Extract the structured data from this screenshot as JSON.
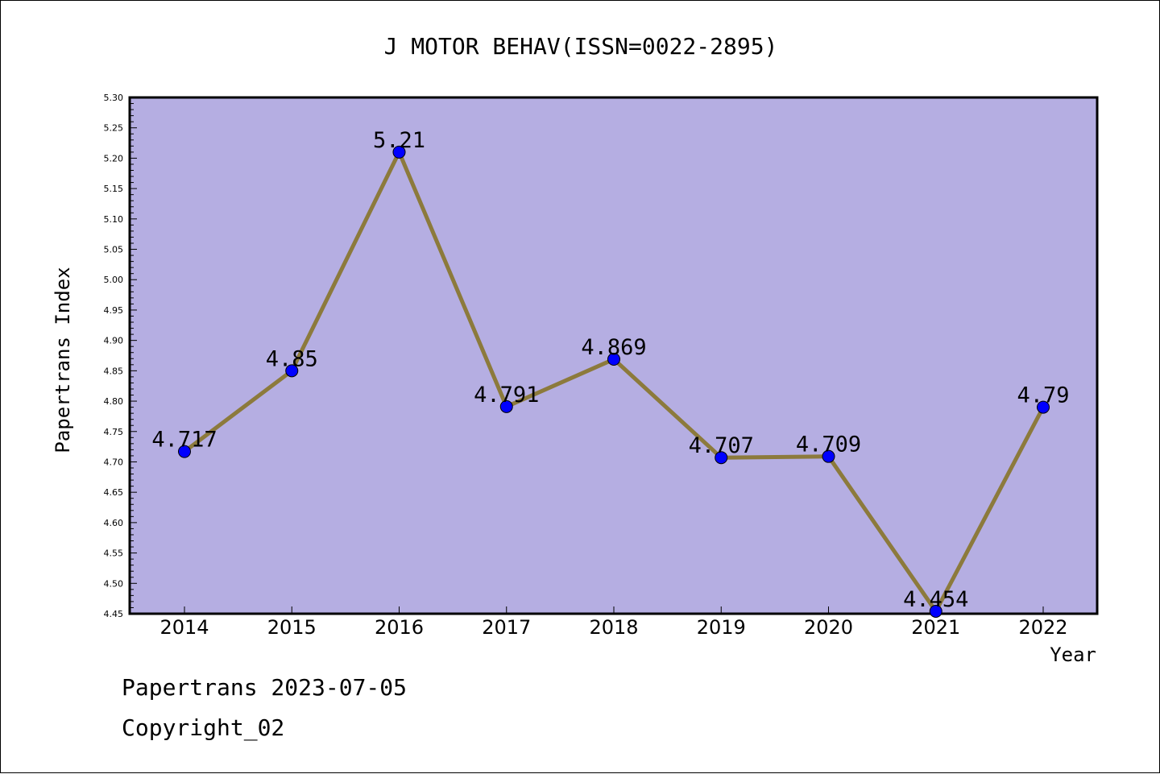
{
  "footer": {
    "date_line": "Papertrans 2023-07-05",
    "copyright": "Copyright_02"
  },
  "colors": {
    "plot_background": "#b5aee2",
    "line": "#8c7a3c",
    "marker": "#0000ff"
  },
  "chart_data": {
    "type": "line",
    "title": "J MOTOR BEHAV(ISSN=0022-2895)",
    "xlabel": "Year",
    "ylabel": "Papertrans Index",
    "categories": [
      "2014",
      "2015",
      "2016",
      "2017",
      "2018",
      "2019",
      "2020",
      "2021",
      "2022"
    ],
    "series": [
      {
        "values": [
          4.717,
          4.85,
          5.21,
          4.791,
          4.869,
          4.707,
          4.709,
          4.454,
          4.79
        ],
        "labels": [
          "4.717",
          "4.85",
          "5.21",
          "4.791",
          "4.869",
          "4.707",
          "4.709",
          "4.454",
          "4.79"
        ]
      }
    ],
    "ylim": [
      4.45,
      5.3
    ],
    "yticks": [
      "4.45",
      "4.50",
      "4.55",
      "4.60",
      "4.65",
      "4.70",
      "4.75",
      "4.80",
      "4.85",
      "4.90",
      "4.95",
      "5.00",
      "5.05",
      "5.10",
      "5.15",
      "5.20",
      "5.25",
      "5.30"
    ],
    "grid": false,
    "legend": "none"
  }
}
